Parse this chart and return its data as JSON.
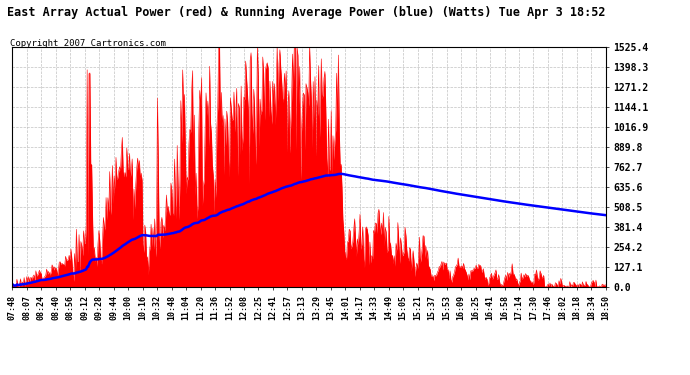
{
  "title": "East Array Actual Power (red) & Running Average Power (blue) (Watts) Tue Apr 3 18:52",
  "copyright": "Copyright 2007 Cartronics.com",
  "yticks": [
    0.0,
    127.1,
    254.2,
    381.4,
    508.5,
    635.6,
    762.7,
    889.8,
    1016.9,
    1144.1,
    1271.2,
    1398.3,
    1525.4
  ],
  "ymax": 1525.4,
  "xtick_labels": [
    "07:48",
    "08:07",
    "08:24",
    "08:40",
    "08:56",
    "09:12",
    "09:28",
    "09:44",
    "10:00",
    "10:16",
    "10:32",
    "10:48",
    "11:04",
    "11:20",
    "11:36",
    "11:52",
    "12:08",
    "12:25",
    "12:41",
    "12:57",
    "13:13",
    "13:29",
    "13:45",
    "14:01",
    "14:17",
    "14:33",
    "14:49",
    "15:05",
    "15:21",
    "15:37",
    "15:53",
    "16:09",
    "16:25",
    "16:41",
    "16:58",
    "17:14",
    "17:30",
    "17:46",
    "18:02",
    "18:18",
    "18:34",
    "18:50"
  ],
  "bg_color": "#ffffff",
  "actual_color": "red",
  "avg_color": "blue",
  "grid_color": "#bbbbbb"
}
